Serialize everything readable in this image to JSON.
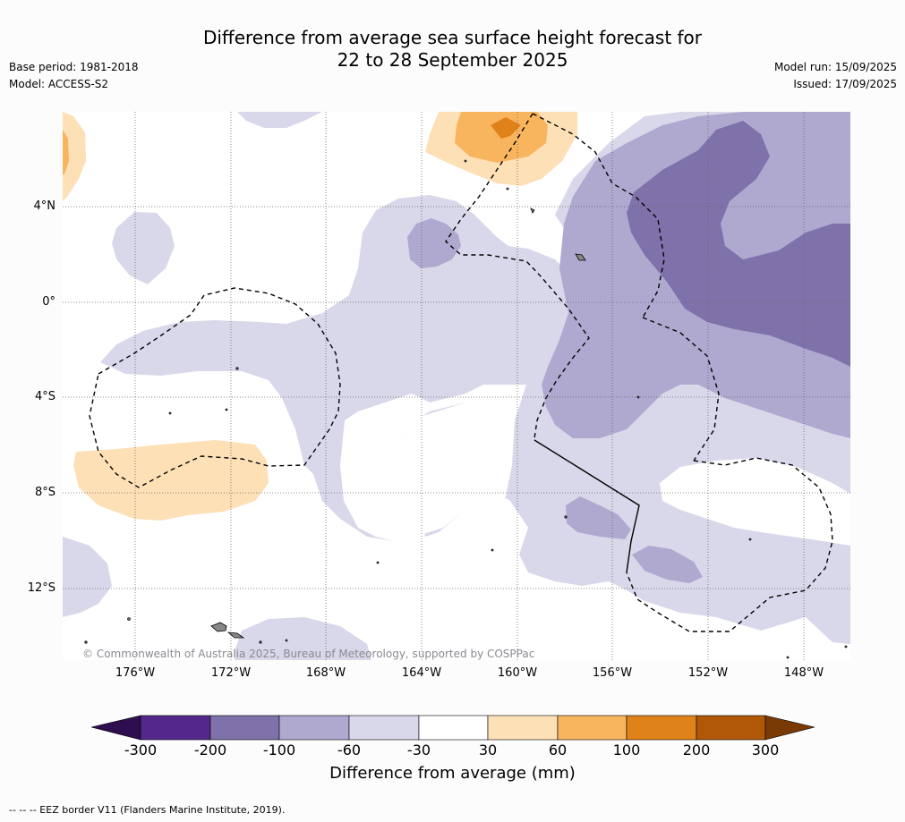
{
  "title_line1": "Difference from average sea surface height forecast for",
  "title_line2": "22 to 28 September 2025",
  "base_period": "Base period: 1981-2018",
  "model": "Model: ACCESS-S2",
  "model_run": "Model run: 15/09/2025",
  "issued": "Issued: 17/09/2025",
  "copyright": "© Commonwealth of Australia 2025, Bureau of Meteorology, supported by COSPPac",
  "footer": "--  --  -- EEZ border V11 (Flanders Marine Institute, 2019).",
  "longitude_labels": [
    "176°W",
    "172°W",
    "168°W",
    "164°W",
    "160°W",
    "156°W",
    "152°W",
    "148°W"
  ],
  "latitude_labels": [
    "4°N",
    "0°",
    "4°S",
    "8°S",
    "12°S"
  ],
  "colorbar": {
    "title": "Difference from average (mm)",
    "ticks": [
      "-300",
      "-200",
      "-100",
      "-60",
      "-30",
      "30",
      "60",
      "100",
      "200",
      "300"
    ],
    "colors": [
      "#2e0e4e",
      "#54288a",
      "#7f71aa",
      "#afa9d0",
      "#d8d8ea",
      "#ffffff",
      "#fde0b6",
      "#f8b55e",
      "#e0821a",
      "#b15708",
      "#7a3a05"
    ]
  }
}
